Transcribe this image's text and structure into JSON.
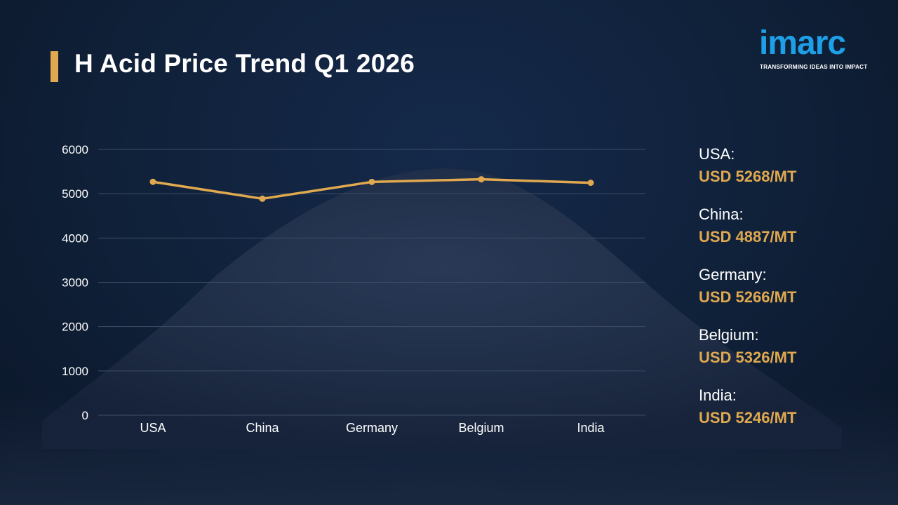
{
  "page": {
    "title": "H Acid Price Trend Q1 2026"
  },
  "logo": {
    "wordmark": "imarc",
    "tagline": "TRANSFORMING IDEAS INTO IMPACT",
    "color": "#1ea0e8"
  },
  "colors": {
    "accent": "#e0a94f",
    "background": "#0f2038",
    "grid": "#3d4d66",
    "text": "#ffffff"
  },
  "chart_data": {
    "type": "line",
    "categories": [
      "USA",
      "China",
      "Germany",
      "Belgium",
      "India"
    ],
    "series": [
      {
        "values": [
          5268,
          4887,
          5266,
          5326,
          5246
        ]
      }
    ],
    "ylim": [
      0,
      6000
    ],
    "yticks": [
      "0",
      "1000",
      "2000",
      "3000",
      "4000",
      "5000",
      "6000"
    ],
    "grid": true,
    "title": "",
    "xlabel": "",
    "ylabel": ""
  },
  "legend": [
    {
      "name": "USA:",
      "value": "USD 5268/MT"
    },
    {
      "name": "China:",
      "value": "USD 4887/MT"
    },
    {
      "name": "Germany:",
      "value": "USD 5266/MT"
    },
    {
      "name": "Belgium:",
      "value": "USD 5326/MT"
    },
    {
      "name": "India:",
      "value": "USD 5246/MT"
    }
  ]
}
